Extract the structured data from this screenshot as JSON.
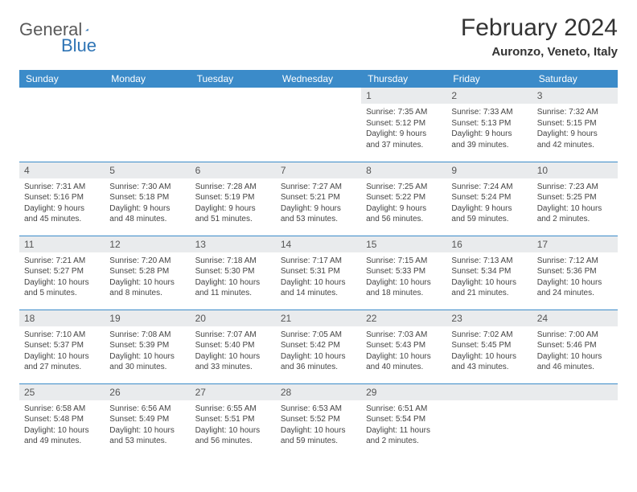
{
  "logo": {
    "word1": "General",
    "word2": "Blue"
  },
  "title": {
    "month": "February 2024",
    "location": "Auronzo, Veneto, Italy"
  },
  "colors": {
    "header_bg": "#3b8bc9",
    "header_text": "#ffffff",
    "daynum_bg": "#e9ebed",
    "row_border": "#3b8bc9",
    "logo_gray": "#5a5a5a",
    "logo_blue": "#2e74b5"
  },
  "weekdays": [
    "Sunday",
    "Monday",
    "Tuesday",
    "Wednesday",
    "Thursday",
    "Friday",
    "Saturday"
  ],
  "weeks": [
    [
      {
        "n": "",
        "lines": []
      },
      {
        "n": "",
        "lines": []
      },
      {
        "n": "",
        "lines": []
      },
      {
        "n": "",
        "lines": []
      },
      {
        "n": "1",
        "lines": [
          "Sunrise: 7:35 AM",
          "Sunset: 5:12 PM",
          "Daylight: 9 hours",
          "and 37 minutes."
        ]
      },
      {
        "n": "2",
        "lines": [
          "Sunrise: 7:33 AM",
          "Sunset: 5:13 PM",
          "Daylight: 9 hours",
          "and 39 minutes."
        ]
      },
      {
        "n": "3",
        "lines": [
          "Sunrise: 7:32 AM",
          "Sunset: 5:15 PM",
          "Daylight: 9 hours",
          "and 42 minutes."
        ]
      }
    ],
    [
      {
        "n": "4",
        "lines": [
          "Sunrise: 7:31 AM",
          "Sunset: 5:16 PM",
          "Daylight: 9 hours",
          "and 45 minutes."
        ]
      },
      {
        "n": "5",
        "lines": [
          "Sunrise: 7:30 AM",
          "Sunset: 5:18 PM",
          "Daylight: 9 hours",
          "and 48 minutes."
        ]
      },
      {
        "n": "6",
        "lines": [
          "Sunrise: 7:28 AM",
          "Sunset: 5:19 PM",
          "Daylight: 9 hours",
          "and 51 minutes."
        ]
      },
      {
        "n": "7",
        "lines": [
          "Sunrise: 7:27 AM",
          "Sunset: 5:21 PM",
          "Daylight: 9 hours",
          "and 53 minutes."
        ]
      },
      {
        "n": "8",
        "lines": [
          "Sunrise: 7:25 AM",
          "Sunset: 5:22 PM",
          "Daylight: 9 hours",
          "and 56 minutes."
        ]
      },
      {
        "n": "9",
        "lines": [
          "Sunrise: 7:24 AM",
          "Sunset: 5:24 PM",
          "Daylight: 9 hours",
          "and 59 minutes."
        ]
      },
      {
        "n": "10",
        "lines": [
          "Sunrise: 7:23 AM",
          "Sunset: 5:25 PM",
          "Daylight: 10 hours",
          "and 2 minutes."
        ]
      }
    ],
    [
      {
        "n": "11",
        "lines": [
          "Sunrise: 7:21 AM",
          "Sunset: 5:27 PM",
          "Daylight: 10 hours",
          "and 5 minutes."
        ]
      },
      {
        "n": "12",
        "lines": [
          "Sunrise: 7:20 AM",
          "Sunset: 5:28 PM",
          "Daylight: 10 hours",
          "and 8 minutes."
        ]
      },
      {
        "n": "13",
        "lines": [
          "Sunrise: 7:18 AM",
          "Sunset: 5:30 PM",
          "Daylight: 10 hours",
          "and 11 minutes."
        ]
      },
      {
        "n": "14",
        "lines": [
          "Sunrise: 7:17 AM",
          "Sunset: 5:31 PM",
          "Daylight: 10 hours",
          "and 14 minutes."
        ]
      },
      {
        "n": "15",
        "lines": [
          "Sunrise: 7:15 AM",
          "Sunset: 5:33 PM",
          "Daylight: 10 hours",
          "and 18 minutes."
        ]
      },
      {
        "n": "16",
        "lines": [
          "Sunrise: 7:13 AM",
          "Sunset: 5:34 PM",
          "Daylight: 10 hours",
          "and 21 minutes."
        ]
      },
      {
        "n": "17",
        "lines": [
          "Sunrise: 7:12 AM",
          "Sunset: 5:36 PM",
          "Daylight: 10 hours",
          "and 24 minutes."
        ]
      }
    ],
    [
      {
        "n": "18",
        "lines": [
          "Sunrise: 7:10 AM",
          "Sunset: 5:37 PM",
          "Daylight: 10 hours",
          "and 27 minutes."
        ]
      },
      {
        "n": "19",
        "lines": [
          "Sunrise: 7:08 AM",
          "Sunset: 5:39 PM",
          "Daylight: 10 hours",
          "and 30 minutes."
        ]
      },
      {
        "n": "20",
        "lines": [
          "Sunrise: 7:07 AM",
          "Sunset: 5:40 PM",
          "Daylight: 10 hours",
          "and 33 minutes."
        ]
      },
      {
        "n": "21",
        "lines": [
          "Sunrise: 7:05 AM",
          "Sunset: 5:42 PM",
          "Daylight: 10 hours",
          "and 36 minutes."
        ]
      },
      {
        "n": "22",
        "lines": [
          "Sunrise: 7:03 AM",
          "Sunset: 5:43 PM",
          "Daylight: 10 hours",
          "and 40 minutes."
        ]
      },
      {
        "n": "23",
        "lines": [
          "Sunrise: 7:02 AM",
          "Sunset: 5:45 PM",
          "Daylight: 10 hours",
          "and 43 minutes."
        ]
      },
      {
        "n": "24",
        "lines": [
          "Sunrise: 7:00 AM",
          "Sunset: 5:46 PM",
          "Daylight: 10 hours",
          "and 46 minutes."
        ]
      }
    ],
    [
      {
        "n": "25",
        "lines": [
          "Sunrise: 6:58 AM",
          "Sunset: 5:48 PM",
          "Daylight: 10 hours",
          "and 49 minutes."
        ]
      },
      {
        "n": "26",
        "lines": [
          "Sunrise: 6:56 AM",
          "Sunset: 5:49 PM",
          "Daylight: 10 hours",
          "and 53 minutes."
        ]
      },
      {
        "n": "27",
        "lines": [
          "Sunrise: 6:55 AM",
          "Sunset: 5:51 PM",
          "Daylight: 10 hours",
          "and 56 minutes."
        ]
      },
      {
        "n": "28",
        "lines": [
          "Sunrise: 6:53 AM",
          "Sunset: 5:52 PM",
          "Daylight: 10 hours",
          "and 59 minutes."
        ]
      },
      {
        "n": "29",
        "lines": [
          "Sunrise: 6:51 AM",
          "Sunset: 5:54 PM",
          "Daylight: 11 hours",
          "and 2 minutes."
        ]
      },
      {
        "n": "",
        "lines": []
      },
      {
        "n": "",
        "lines": []
      }
    ]
  ]
}
